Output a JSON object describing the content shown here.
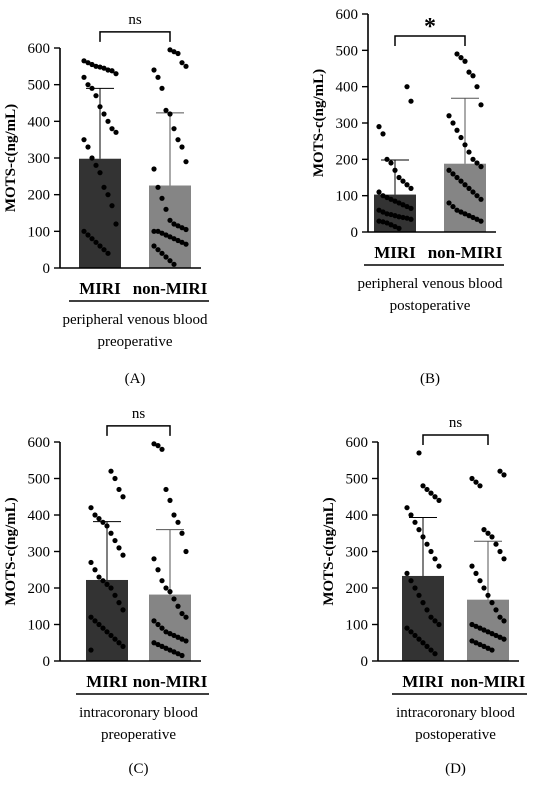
{
  "chart_data": [
    {
      "type": "bar",
      "panel_label": "(A)",
      "ylabel": "MOTS-c(ng/mL)",
      "categories": [
        "MIRI",
        "non-MIRI"
      ],
      "group_label_lines": [
        "peripheral venous blood",
        "preoperative"
      ],
      "ylim": [
        0,
        600
      ],
      "yticks": [
        "0",
        "100",
        "200",
        "300",
        "400",
        "500",
        "600"
      ],
      "significance": "ns",
      "bar_colors": [
        "#333333",
        "#858585"
      ],
      "series": [
        {
          "name": "MIRI",
          "mean": 298,
          "sd": 192,
          "points": [
            565,
            560,
            555,
            550,
            548,
            545,
            540,
            538,
            530,
            520,
            500,
            490,
            470,
            440,
            420,
            400,
            380,
            370,
            350,
            330,
            300,
            280,
            260,
            220,
            200,
            170,
            120,
            100,
            90,
            80,
            70,
            60,
            50,
            40
          ]
        },
        {
          "name": "non-MIRI",
          "mean": 225,
          "sd": 198,
          "points": [
            595,
            590,
            585,
            560,
            550,
            540,
            520,
            490,
            430,
            420,
            380,
            350,
            330,
            290,
            270,
            220,
            190,
            160,
            130,
            120,
            115,
            110,
            105,
            100,
            100,
            95,
            90,
            85,
            80,
            75,
            70,
            65,
            60,
            50,
            40,
            30,
            20,
            10
          ]
        }
      ]
    },
    {
      "type": "bar",
      "panel_label": "(B)",
      "ylabel": "MOTS-c(ng/mL)",
      "categories": [
        "MIRI",
        "non-MIRI"
      ],
      "group_label_lines": [
        "peripheral venous blood",
        "postoperative"
      ],
      "ylim": [
        0,
        600
      ],
      "yticks": [
        "0",
        "100",
        "200",
        "300",
        "400",
        "500",
        "600"
      ],
      "significance": "*",
      "bar_colors": [
        "#333333",
        "#858585"
      ],
      "series": [
        {
          "name": "MIRI",
          "mean": 103,
          "sd": 95,
          "points": [
            400,
            360,
            290,
            270,
            200,
            190,
            170,
            150,
            140,
            130,
            120,
            110,
            100,
            95,
            90,
            85,
            80,
            75,
            70,
            65,
            60,
            55,
            50,
            48,
            45,
            42,
            40,
            38,
            35,
            30,
            28,
            25,
            20,
            15,
            10
          ]
        },
        {
          "name": "non-MIRI",
          "mean": 188,
          "sd": 180,
          "points": [
            490,
            480,
            470,
            440,
            430,
            400,
            350,
            320,
            300,
            280,
            260,
            240,
            220,
            200,
            190,
            180,
            170,
            160,
            150,
            140,
            130,
            120,
            110,
            100,
            90,
            80,
            70,
            60,
            55,
            50,
            45,
            40,
            35,
            30
          ]
        }
      ]
    },
    {
      "type": "bar",
      "panel_label": "(C)",
      "ylabel": "MOTS-c(ng/mL)",
      "categories": [
        "MIRI",
        "non-MIRI"
      ],
      "group_label_lines": [
        "intracoronary blood",
        "preoperative"
      ],
      "ylim": [
        0,
        600
      ],
      "yticks": [
        "0",
        "100",
        "200",
        "300",
        "400",
        "500",
        "600"
      ],
      "significance": "ns",
      "bar_colors": [
        "#333333",
        "#858585"
      ],
      "series": [
        {
          "name": "MIRI",
          "mean": 222,
          "sd": 160,
          "points": [
            520,
            500,
            470,
            450,
            420,
            400,
            390,
            380,
            370,
            350,
            330,
            310,
            290,
            270,
            250,
            230,
            220,
            210,
            200,
            180,
            160,
            140,
            120,
            110,
            100,
            90,
            80,
            70,
            60,
            50,
            40,
            30
          ]
        },
        {
          "name": "non-MIRI",
          "mean": 182,
          "sd": 178,
          "points": [
            595,
            590,
            580,
            470,
            440,
            400,
            380,
            350,
            300,
            280,
            250,
            220,
            200,
            190,
            170,
            150,
            130,
            120,
            110,
            100,
            90,
            80,
            75,
            70,
            65,
            60,
            55,
            50,
            45,
            40,
            35,
            30,
            25,
            20,
            15
          ]
        }
      ]
    },
    {
      "type": "bar",
      "panel_label": "(D)",
      "ylabel": "MOTS-c(ng/mL)",
      "categories": [
        "MIRI",
        "non-MIRI"
      ],
      "group_label_lines": [
        "intracoronary blood",
        "postoperative"
      ],
      "ylim": [
        0,
        600
      ],
      "yticks": [
        "0",
        "100",
        "200",
        "300",
        "400",
        "500",
        "600"
      ],
      "significance": "ns",
      "bar_colors": [
        "#333333",
        "#858585"
      ],
      "series": [
        {
          "name": "MIRI",
          "mean": 233,
          "sd": 160,
          "points": [
            570,
            480,
            470,
            460,
            450,
            440,
            420,
            400,
            380,
            360,
            340,
            320,
            300,
            280,
            260,
            240,
            220,
            200,
            180,
            160,
            140,
            120,
            110,
            100,
            90,
            80,
            70,
            60,
            50,
            40,
            30,
            20
          ]
        },
        {
          "name": "non-MIRI",
          "mean": 168,
          "sd": 160,
          "points": [
            520,
            510,
            500,
            490,
            480,
            360,
            350,
            340,
            320,
            300,
            280,
            260,
            240,
            220,
            200,
            180,
            160,
            140,
            120,
            110,
            100,
            95,
            90,
            85,
            80,
            75,
            70,
            65,
            60,
            55,
            50,
            45,
            40,
            35,
            30
          ]
        }
      ]
    }
  ]
}
